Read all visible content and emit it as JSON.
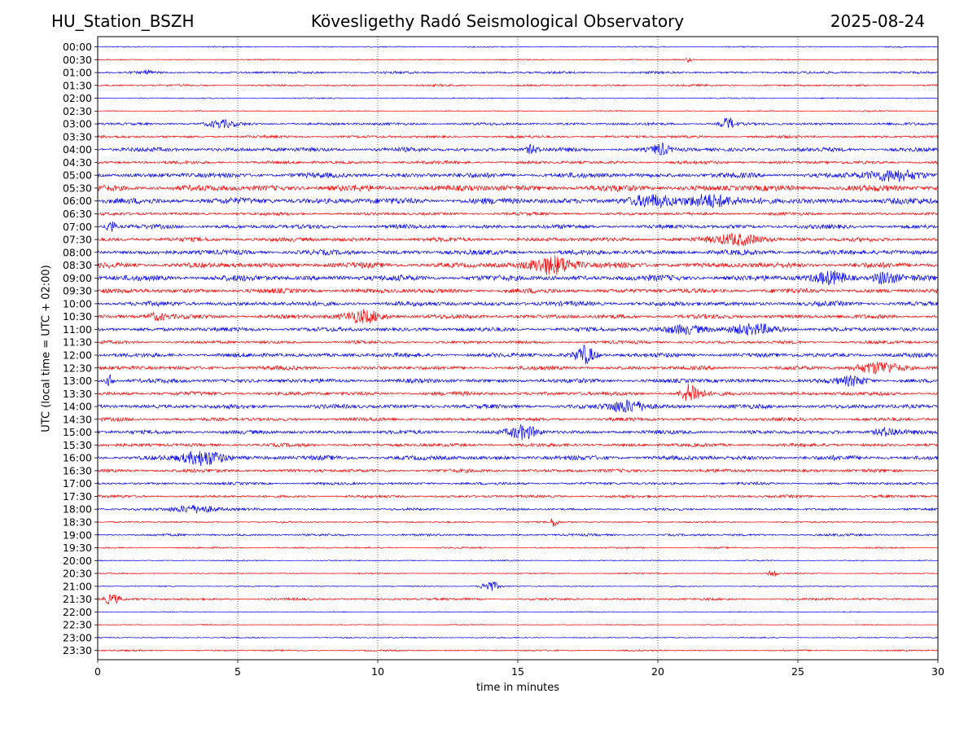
{
  "header": {
    "station": "HU_Station_BSZH",
    "title": "Kövesligethy Radó Seismological Observatory",
    "date": "2025-08-24"
  },
  "chart_data": {
    "type": "line",
    "subtype": "helicorder seismogram",
    "xlabel": "time in minutes",
    "ylabel": "UTC (local time = UTC + 02:00)",
    "xlim": [
      0,
      30
    ],
    "x_ticks": [
      "0",
      "5",
      "10",
      "15",
      "20",
      "25",
      "30"
    ],
    "grid": "vertical dotted at every 5 minutes",
    "row_labels": [
      "00:00",
      "00:30",
      "01:00",
      "01:30",
      "02:00",
      "02:30",
      "03:00",
      "03:30",
      "04:00",
      "04:30",
      "05:00",
      "05:30",
      "06:00",
      "06:30",
      "07:00",
      "07:30",
      "08:00",
      "08:30",
      "09:00",
      "09:30",
      "10:00",
      "10:30",
      "11:00",
      "11:30",
      "12:00",
      "12:30",
      "13:00",
      "13:30",
      "14:00",
      "14:30",
      "15:00",
      "15:30",
      "16:00",
      "16:30",
      "17:00",
      "17:30",
      "18:00",
      "18:30",
      "19:00",
      "19:30",
      "20:00",
      "20:30",
      "21:00",
      "21:30",
      "22:00",
      "22:30",
      "23:00",
      "23:30"
    ],
    "colors": {
      "even_rows": "#0000ff",
      "odd_rows": "#ff0000"
    },
    "noise_level": [
      0.6,
      0.6,
      1.2,
      1.0,
      0.6,
      0.6,
      1.4,
      1.4,
      2.2,
      1.6,
      2.6,
      3.2,
      3.2,
      1.6,
      2.2,
      2.2,
      2.6,
      2.8,
      3.0,
      2.4,
      2.4,
      2.2,
      2.2,
      1.6,
      2.2,
      2.0,
      2.2,
      2.0,
      2.2,
      1.8,
      2.0,
      1.8,
      2.4,
      1.8,
      1.4,
      1.4,
      1.2,
      0.8,
      1.2,
      0.8,
      0.6,
      0.6,
      0.6,
      1.2,
      0.5,
      0.5,
      0.6,
      0.8
    ],
    "events": [
      {
        "row": "00:30",
        "minute": 21.1,
        "amplitude": 3,
        "width": 0.1
      },
      {
        "row": "01:00",
        "minute": 1.8,
        "amplitude": 4,
        "width": 0.1
      },
      {
        "row": "03:00",
        "minute": 4.4,
        "amplitude": 4,
        "width": 0.5
      },
      {
        "row": "03:00",
        "minute": 22.5,
        "amplitude": 7,
        "width": 0.25
      },
      {
        "row": "04:00",
        "minute": 15.5,
        "amplitude": 5,
        "width": 0.2
      },
      {
        "row": "04:00",
        "minute": 20.1,
        "amplitude": 6,
        "width": 0.3
      },
      {
        "row": "05:00",
        "minute": 28.4,
        "amplitude": 6,
        "width": 1.0
      },
      {
        "row": "06:00",
        "minute": 21.8,
        "amplitude": 8,
        "width": 0.8
      },
      {
        "row": "06:00",
        "minute": 19.8,
        "amplitude": 5,
        "width": 0.8
      },
      {
        "row": "07:00",
        "minute": 0.45,
        "amplitude": 9,
        "width": 0.15
      },
      {
        "row": "07:30",
        "minute": 22.9,
        "amplitude": 7,
        "width": 0.8
      },
      {
        "row": "08:30",
        "minute": 16.3,
        "amplitude": 11,
        "width": 0.8
      },
      {
        "row": "09:00",
        "minute": 26.2,
        "amplitude": 7,
        "width": 0.6
      },
      {
        "row": "09:00",
        "minute": 28.1,
        "amplitude": 7,
        "width": 0.4
      },
      {
        "row": "10:30",
        "minute": 9.5,
        "amplitude": 7,
        "width": 0.7
      },
      {
        "row": "10:30",
        "minute": 2.1,
        "amplitude": 4,
        "width": 0.4
      },
      {
        "row": "11:00",
        "minute": 21.0,
        "amplitude": 5,
        "width": 0.8
      },
      {
        "row": "11:00",
        "minute": 23.5,
        "amplitude": 5,
        "width": 0.9
      },
      {
        "row": "12:00",
        "minute": 17.4,
        "amplitude": 11,
        "width": 0.35
      },
      {
        "row": "12:30",
        "minute": 27.9,
        "amplitude": 7,
        "width": 0.8
      },
      {
        "row": "13:00",
        "minute": 0.45,
        "amplitude": 7,
        "width": 0.15
      },
      {
        "row": "13:00",
        "minute": 27.0,
        "amplitude": 5,
        "width": 0.5
      },
      {
        "row": "13:30",
        "minute": 21.2,
        "amplitude": 12,
        "width": 0.35
      },
      {
        "row": "14:00",
        "minute": 18.9,
        "amplitude": 7,
        "width": 0.7
      },
      {
        "row": "15:00",
        "minute": 15.2,
        "amplitude": 8,
        "width": 0.5
      },
      {
        "row": "15:00",
        "minute": 28.2,
        "amplitude": 5,
        "width": 0.5
      },
      {
        "row": "16:00",
        "minute": 3.8,
        "amplitude": 9,
        "width": 0.7
      },
      {
        "row": "18:00",
        "minute": 3.5,
        "amplitude": 5,
        "width": 0.8
      },
      {
        "row": "18:30",
        "minute": 16.3,
        "amplitude": 6,
        "width": 0.15
      },
      {
        "row": "20:30",
        "minute": 24.1,
        "amplitude": 5,
        "width": 0.15
      },
      {
        "row": "21:00",
        "minute": 14.0,
        "amplitude": 7,
        "width": 0.3
      },
      {
        "row": "21:30",
        "minute": 0.5,
        "amplitude": 6,
        "width": 0.3
      }
    ]
  }
}
